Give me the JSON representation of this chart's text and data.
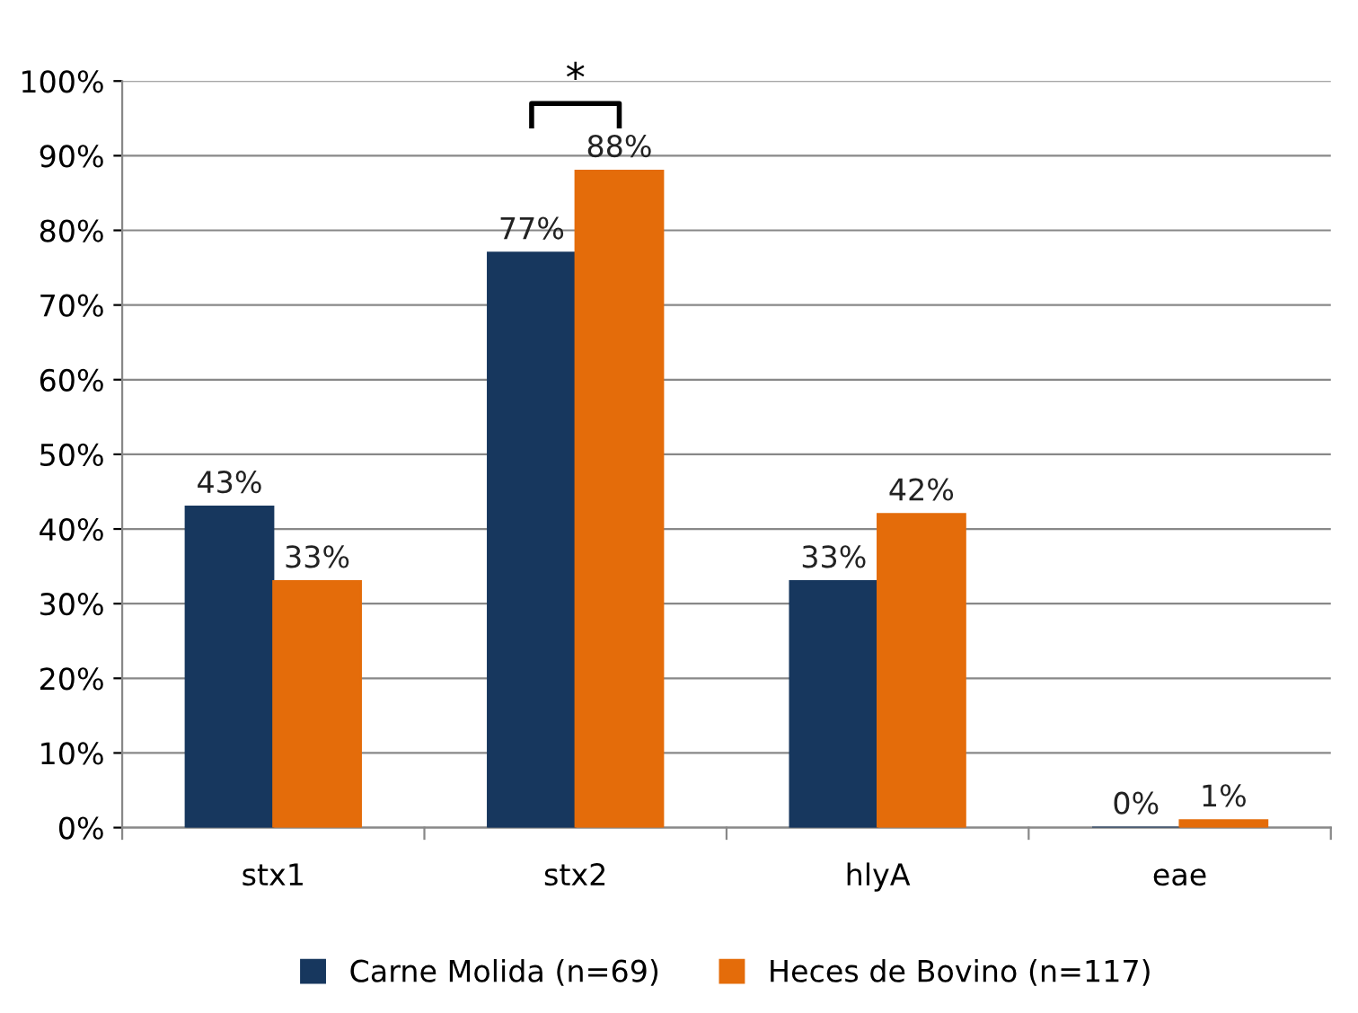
{
  "chart_data": {
    "type": "bar",
    "categories": [
      "stx1",
      "stx2",
      "hlyA",
      "eae"
    ],
    "series": [
      {
        "name": "Carne Molida (n=69)",
        "color": "#17375e",
        "values": [
          43,
          77,
          33,
          0
        ],
        "value_labels": [
          "43%",
          "77%",
          "33%",
          "0%"
        ]
      },
      {
        "name": "Heces de Bovino (n=117)",
        "color": "#e46c0a",
        "values": [
          33,
          88,
          42,
          1
        ],
        "value_labels": [
          "33%",
          "88%",
          "42%",
          "1%"
        ]
      }
    ],
    "ylim": [
      0,
      100
    ],
    "yticks": [
      {
        "value": 0,
        "label": "0%"
      },
      {
        "value": 10,
        "label": "10%"
      },
      {
        "value": 20,
        "label": "20%"
      },
      {
        "value": 30,
        "label": "30%"
      },
      {
        "value": 40,
        "label": "40%"
      },
      {
        "value": 50,
        "label": "50%"
      },
      {
        "value": 60,
        "label": "60%"
      },
      {
        "value": 70,
        "label": "70%"
      },
      {
        "value": 80,
        "label": "80%"
      },
      {
        "value": 90,
        "label": "90%"
      },
      {
        "value": 100,
        "label": "100%"
      }
    ],
    "grid": "y",
    "legend": "bottom",
    "annotations": [
      "*"
    ]
  }
}
